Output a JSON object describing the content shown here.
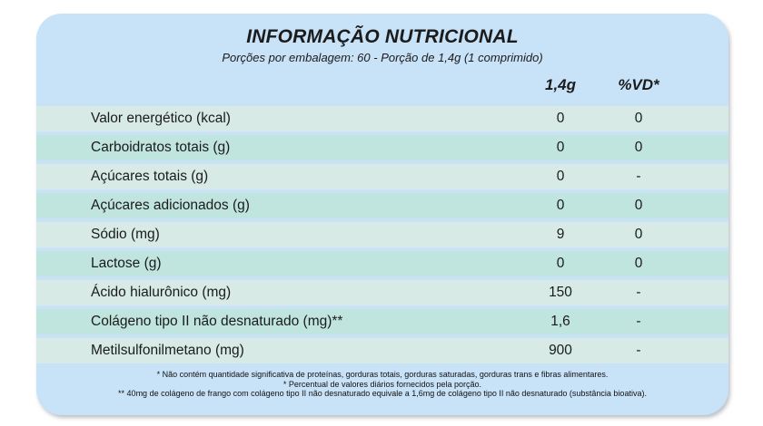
{
  "label": {
    "title": "INFORMAÇÃO NUTRICIONAL",
    "subtitle": "Porções por embalagem: 60 - Porção de 1,4g (1 comprimido)",
    "columns": [
      "1,4g",
      "%VD*"
    ],
    "rows": [
      {
        "label": "Valor energético (kcal)",
        "amount": "0",
        "vd": "0"
      },
      {
        "label": "Carboidratos totais (g)",
        "amount": "0",
        "vd": "0"
      },
      {
        "label": "Açúcares totais (g)",
        "amount": "0",
        "vd": "-"
      },
      {
        "label": "Açúcares adicionados (g)",
        "amount": "0",
        "vd": "0"
      },
      {
        "label": "Sódio (mg)",
        "amount": "9",
        "vd": "0"
      },
      {
        "label": "Lactose (g)",
        "amount": "0",
        "vd": "0"
      },
      {
        "label": "Ácido hialurônico (mg)",
        "amount": "150",
        "vd": "-"
      },
      {
        "label": "Colágeno tipo II não desnaturado (mg)**",
        "amount": "1,6",
        "vd": "-"
      },
      {
        "label": "Metilsulfonilmetano (mg)",
        "amount": "900",
        "vd": "-"
      }
    ],
    "footnotes": [
      "* Não contém quantidade significativa de proteínas, gorduras totais, gorduras saturadas, gorduras trans e fibras alimentares.",
      "* Percentual de valores diários fornecidos pela porção.",
      "** 40mg de colágeno de frango com colágeno tipo II não desnaturado equivale a 1,6mg de colágeno tipo II não desnaturado (substância bioativa)."
    ],
    "colors": {
      "card_bg": "#c8e2f8",
      "row_light": "#d7eae6",
      "row_dark": "#c0e5de",
      "text": "#1b1b1b"
    }
  }
}
